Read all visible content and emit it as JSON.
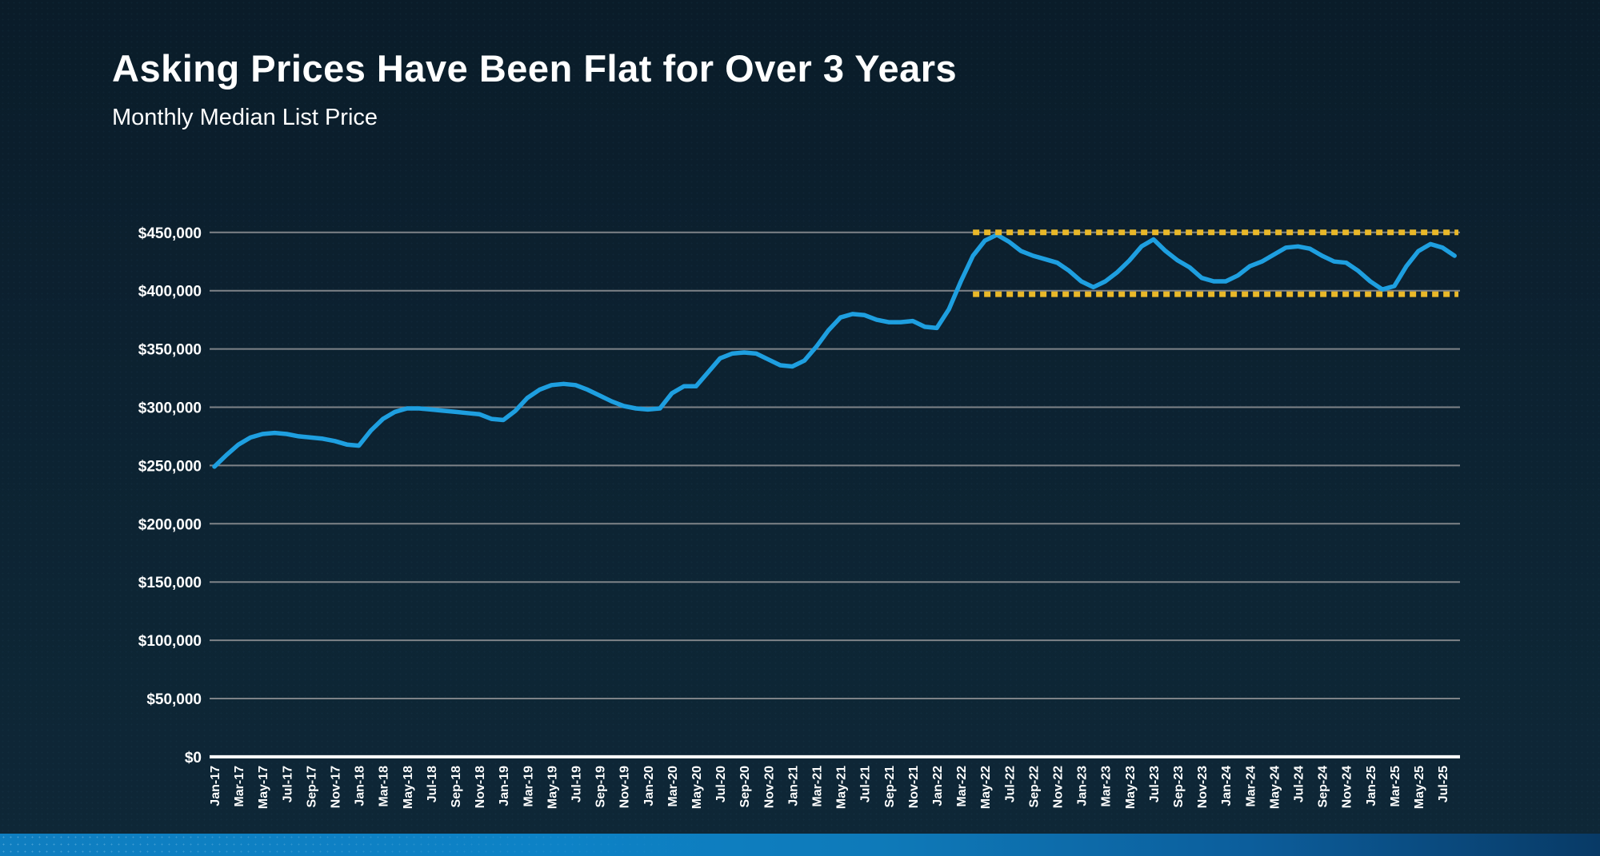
{
  "slide": {
    "title": "Asking Prices Have Been Flat for Over 3 Years",
    "subtitle": "Monthly Median List Price"
  },
  "colors": {
    "background": "#0c2130",
    "title_text": "#ffffff",
    "line": "#1e9fe0",
    "band_dash": "#e9b829",
    "gridline": "#7e8388",
    "axis_baseline": "#ffffff",
    "footer_bar_left": "#0d82c6",
    "footer_bar_right": "#083a66"
  },
  "chart_data": {
    "type": "line",
    "title": "Monthly Median List Price",
    "xlabel": "",
    "ylabel": "",
    "ylim": [
      0,
      450000
    ],
    "grid": true,
    "legend_position": "none",
    "series_name": "Monthly Median List Price",
    "x": [
      "Jan-17",
      "Feb-17",
      "Mar-17",
      "Apr-17",
      "May-17",
      "Jun-17",
      "Jul-17",
      "Aug-17",
      "Sep-17",
      "Oct-17",
      "Nov-17",
      "Dec-17",
      "Jan-18",
      "Feb-18",
      "Mar-18",
      "Apr-18",
      "May-18",
      "Jun-18",
      "Jul-18",
      "Aug-18",
      "Sep-18",
      "Oct-18",
      "Nov-18",
      "Dec-18",
      "Jan-19",
      "Feb-19",
      "Mar-19",
      "Apr-19",
      "May-19",
      "Jun-19",
      "Jul-19",
      "Aug-19",
      "Sep-19",
      "Oct-19",
      "Nov-19",
      "Dec-19",
      "Jan-20",
      "Feb-20",
      "Mar-20",
      "Apr-20",
      "May-20",
      "Jun-20",
      "Jul-20",
      "Aug-20",
      "Sep-20",
      "Oct-20",
      "Nov-20",
      "Dec-20",
      "Jan-21",
      "Feb-21",
      "Mar-21",
      "Apr-21",
      "May-21",
      "Jun-21",
      "Jul-21",
      "Aug-21",
      "Sep-21",
      "Oct-21",
      "Nov-21",
      "Dec-21",
      "Jan-22",
      "Feb-22",
      "Mar-22",
      "Apr-22",
      "May-22",
      "Jun-22",
      "Jul-22",
      "Aug-22",
      "Sep-22",
      "Oct-22",
      "Nov-22",
      "Dec-22",
      "Jan-23",
      "Feb-23",
      "Mar-23",
      "Apr-23",
      "May-23",
      "Jun-23",
      "Jul-23",
      "Aug-23",
      "Sep-23",
      "Oct-23",
      "Nov-23",
      "Dec-23",
      "Jan-24",
      "Feb-24",
      "Mar-24",
      "Apr-24",
      "May-24",
      "Jun-24",
      "Jul-24",
      "Aug-24",
      "Sep-24",
      "Oct-24",
      "Nov-24",
      "Dec-24",
      "Jan-25",
      "Feb-25",
      "Mar-25",
      "Apr-25",
      "May-25",
      "Jun-25",
      "Jul-25",
      "Aug-25"
    ],
    "values": [
      249000,
      259000,
      268000,
      274000,
      277000,
      278000,
      277000,
      275000,
      274000,
      273000,
      271000,
      268000,
      267000,
      280000,
      290000,
      296000,
      299000,
      299000,
      298000,
      297000,
      296000,
      295000,
      294000,
      290000,
      289000,
      297000,
      308000,
      315000,
      319000,
      320000,
      319000,
      315000,
      310000,
      305000,
      301000,
      299000,
      298000,
      299000,
      312000,
      318000,
      318000,
      330000,
      342000,
      346000,
      347000,
      346000,
      341000,
      336000,
      335000,
      340000,
      352000,
      366000,
      377000,
      380000,
      379000,
      375000,
      373000,
      373000,
      374000,
      369000,
      368000,
      384000,
      408000,
      430000,
      443000,
      448000,
      442000,
      434000,
      430000,
      427000,
      424000,
      417000,
      408000,
      403000,
      408000,
      416000,
      426000,
      438000,
      444000,
      434000,
      426000,
      420000,
      411000,
      408000,
      408000,
      413000,
      421000,
      425000,
      431000,
      437000,
      438000,
      436000,
      430000,
      425000,
      424000,
      417000,
      408000,
      401000,
      404000,
      421000,
      434000,
      440000,
      437000,
      430000
    ],
    "y_ticks": [
      {
        "value": 0,
        "label": "$0"
      },
      {
        "value": 50000,
        "label": "$50,000"
      },
      {
        "value": 100000,
        "label": "$100,000"
      },
      {
        "value": 150000,
        "label": "$150,000"
      },
      {
        "value": 200000,
        "label": "$200,000"
      },
      {
        "value": 250000,
        "label": "$250,000"
      },
      {
        "value": 300000,
        "label": "$300,000"
      },
      {
        "value": 350000,
        "label": "$350,000"
      },
      {
        "value": 400000,
        "label": "$400,000"
      },
      {
        "value": 450000,
        "label": "$450,000"
      }
    ],
    "x_tick_labels": [
      "Jan-17",
      "Mar-17",
      "May-17",
      "Jul-17",
      "Sep-17",
      "Nov-17",
      "Jan-18",
      "Mar-18",
      "May-18",
      "Jul-18",
      "Sep-18",
      "Nov-18",
      "Jan-19",
      "Mar-19",
      "May-19",
      "Jul-19",
      "Sep-19",
      "Nov-19",
      "Jan-20",
      "Mar-20",
      "May-20",
      "Jul-20",
      "Sep-20",
      "Nov-20",
      "Jan-21",
      "Mar-21",
      "May-21",
      "Jul-21",
      "Sep-21",
      "Nov-21",
      "Jan-22",
      "Mar-22",
      "May-22",
      "Jul-22",
      "Sep-22",
      "Nov-22",
      "Jan-23",
      "Mar-23",
      "May-23",
      "Jul-23",
      "Sep-23",
      "Nov-23",
      "Jan-24",
      "Mar-24",
      "May-24",
      "Jul-24",
      "Sep-24",
      "Nov-24",
      "Jan-25",
      "Mar-25",
      "May-25",
      "Jul-25"
    ],
    "annotations": {
      "band_lines": [
        {
          "name": "upper-band",
          "value": 450000,
          "style": "dashed",
          "color": "#e9b829",
          "start_month": "Apr-22",
          "end": "right-edge"
        },
        {
          "name": "lower-band",
          "value": 397000,
          "style": "dashed",
          "color": "#e9b829",
          "start_month": "Apr-22",
          "end": "right-edge"
        }
      ]
    }
  }
}
